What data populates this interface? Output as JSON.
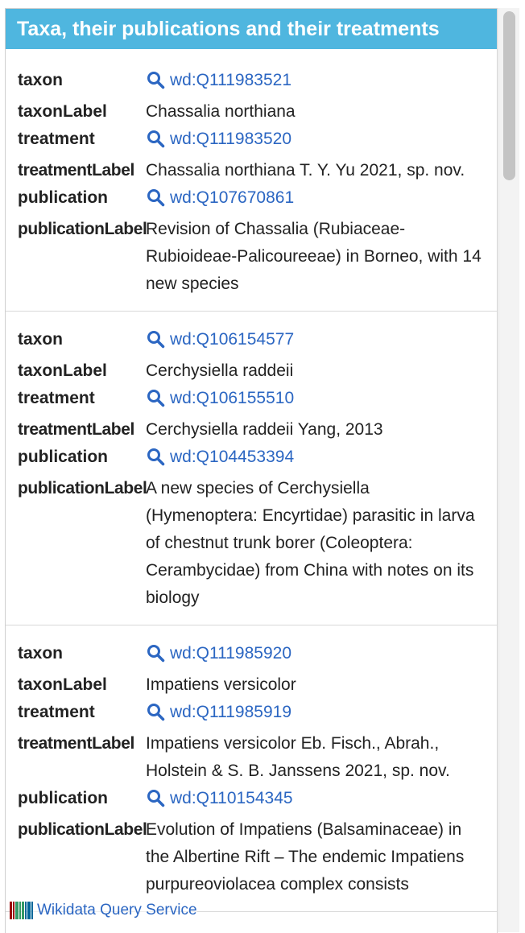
{
  "header": {
    "title": "Taxa, their publications and their treatments"
  },
  "labels": {
    "taxon": "taxon",
    "taxonLabel": "taxonLabel",
    "treatment": "treatment",
    "treatmentLabel": "treatmentLabel",
    "publication": "publication",
    "publicationLabel": "publicationLabel"
  },
  "records": [
    {
      "taxon": "wd:Q111983521",
      "taxonLabel": "Chassalia northiana",
      "treatment": "wd:Q111983520",
      "treatmentLabel": "Chassalia northiana T. Y. Yu 2021, sp. nov.",
      "publication": "wd:Q107670861",
      "publicationLabel": "Revision of Chassalia (Rubiaceae-Rubioideae-Palicoureeae) in Borneo, with 14 new species"
    },
    {
      "taxon": "wd:Q106154577",
      "taxonLabel": "Cerchysiella raddeii",
      "treatment": "wd:Q106155510",
      "treatmentLabel": "Cerchysiella raddeii Yang, 2013",
      "publication": "wd:Q104453394",
      "publicationLabel": "A new species of Cerchysiella (Hymenoptera: Encyrtidae) parasitic in larva of chestnut trunk borer (Coleoptera: Cerambycidae) from China with notes on its biology"
    },
    {
      "taxon": "wd:Q111985920",
      "taxonLabel": "Impatiens versicolor",
      "treatment": "wd:Q111985919",
      "treatmentLabel": "Impatiens versicolor Eb. Fisch., Abrah., Holstein & S. B. Janssens 2021, sp. nov.",
      "publication": "wd:Q110154345",
      "publicationLabel": "Evolution of Impatiens (Balsaminaceae) in the Albertine Rift – The endemic Impatiens purpureoviolacea complex consists"
    }
  ],
  "footer": {
    "brand": "Wikidata Query Service",
    "logo_icon": "wikidata-barcode-icon"
  },
  "icons": {
    "link_icon": "magnifier-icon"
  },
  "colors": {
    "title_bg": "#4fb6df",
    "link": "#2b66c2"
  }
}
